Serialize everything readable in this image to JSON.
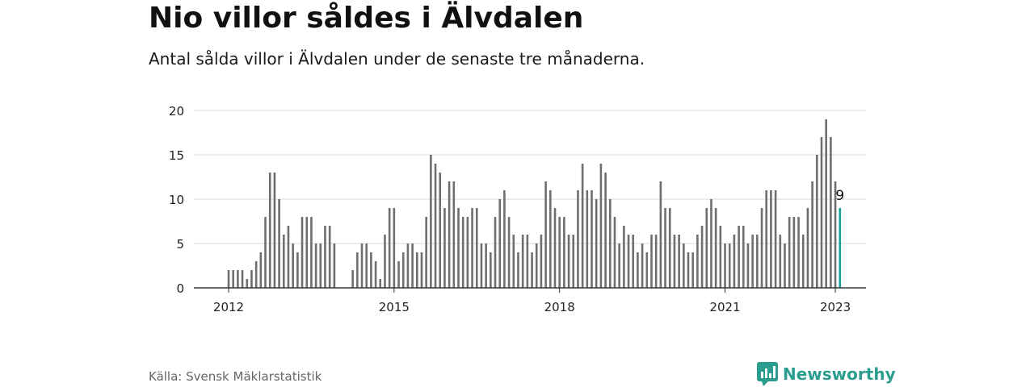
{
  "title": "Nio villor såldes i Älvdalen",
  "subtitle": "Antal sålda villor i Älvdalen under de senaste tre månaderna.",
  "source": "Källa: Svensk Mäklarstatistik",
  "brand": {
    "name": "Newsworthy",
    "icon": "newsworthy-logo-icon",
    "color": "#2a9d8f"
  },
  "chart_data": {
    "type": "bar",
    "bar_color": "#6e6e73",
    "highlight_color": "#13a19a",
    "x_start": "2012-01",
    "x_ticks": [
      "2012",
      "2015",
      "2018",
      "2021",
      "2023"
    ],
    "y_ticks": [
      0,
      5,
      10,
      15,
      20
    ],
    "ylim": [
      0,
      20
    ],
    "grid": true,
    "values": [
      2,
      2,
      2,
      2,
      1,
      2,
      3,
      4,
      8,
      13,
      13,
      10,
      6,
      7,
      5,
      4,
      8,
      8,
      8,
      5,
      5,
      7,
      7,
      5,
      0,
      0,
      0,
      2,
      4,
      5,
      5,
      4,
      3,
      1,
      6,
      9,
      9,
      3,
      4,
      5,
      5,
      4,
      4,
      8,
      15,
      14,
      13,
      9,
      12,
      12,
      9,
      8,
      8,
      9,
      9,
      5,
      5,
      4,
      8,
      10,
      11,
      8,
      6,
      4,
      6,
      6,
      4,
      5,
      6,
      12,
      11,
      9,
      8,
      8,
      6,
      6,
      11,
      14,
      11,
      11,
      10,
      14,
      13,
      10,
      8,
      5,
      7,
      6,
      6,
      4,
      5,
      4,
      6,
      6,
      12,
      9,
      9,
      6,
      6,
      5,
      4,
      4,
      6,
      7,
      9,
      10,
      9,
      7,
      5,
      5,
      6,
      7,
      7,
      5,
      6,
      6,
      9,
      11,
      11,
      11,
      6,
      5,
      8,
      8,
      8,
      6,
      9,
      12,
      15,
      17,
      19,
      17,
      12,
      9
    ],
    "highlight_last": true,
    "last_label": "9"
  }
}
